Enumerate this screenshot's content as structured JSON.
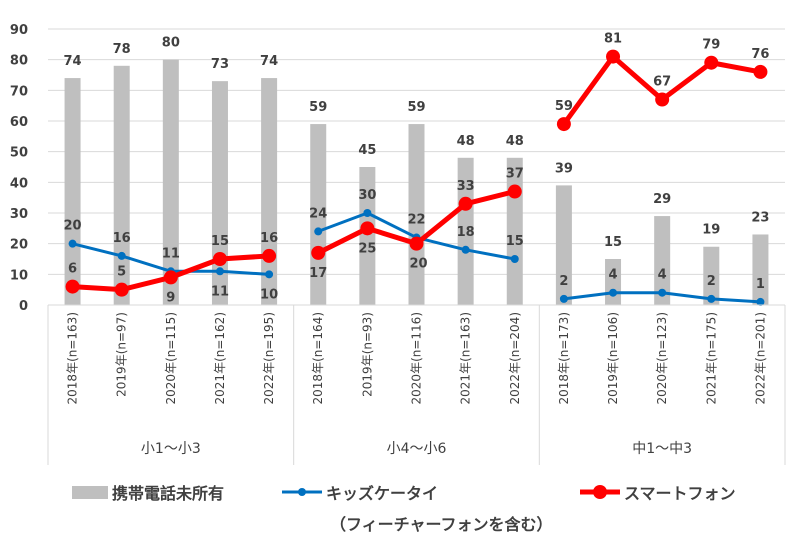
{
  "chart_data": {
    "type": "bar+line",
    "title": "",
    "xlabel": "",
    "ylabel": "",
    "ylim": [
      0,
      90
    ],
    "yticks": [
      0,
      10,
      20,
      30,
      40,
      50,
      60,
      70,
      80,
      90
    ],
    "grid": true,
    "legend_position": "bottom",
    "groups": [
      "小1～小3",
      "小4～小6",
      "中1～中3"
    ],
    "categories": [
      "2018年(n=163)",
      "2019年(n=97)",
      "2020年(n=115)",
      "2021年(n=162)",
      "2022年(n=195)",
      "2018年(n=164)",
      "2019年(n=93)",
      "2020年(n=116)",
      "2021年(n=163)",
      "2022年(n=204)",
      "2018年(n=173)",
      "2019年(n=106)",
      "2020年(n=123)",
      "2021年(n=175)",
      "2022年(n=201)"
    ],
    "series": [
      {
        "name": "携帯電話未所有",
        "type": "bar",
        "color": "#bfbfbf",
        "values": [
          74,
          78,
          80,
          73,
          74,
          59,
          45,
          59,
          48,
          48,
          39,
          15,
          29,
          19,
          23
        ]
      },
      {
        "name": "キッズケータイ",
        "type": "line",
        "color": "#0070c0",
        "values": [
          20,
          16,
          11,
          11,
          10,
          24,
          30,
          22,
          18,
          15,
          2,
          4,
          4,
          2,
          1
        ]
      },
      {
        "name": "スマートフォン",
        "type": "line",
        "color": "#ff0000",
        "values": [
          6,
          5,
          9,
          15,
          16,
          17,
          25,
          20,
          33,
          37,
          59,
          81,
          67,
          79,
          76
        ]
      }
    ],
    "legend_note": "（フィーチャーフォンを含む）"
  }
}
